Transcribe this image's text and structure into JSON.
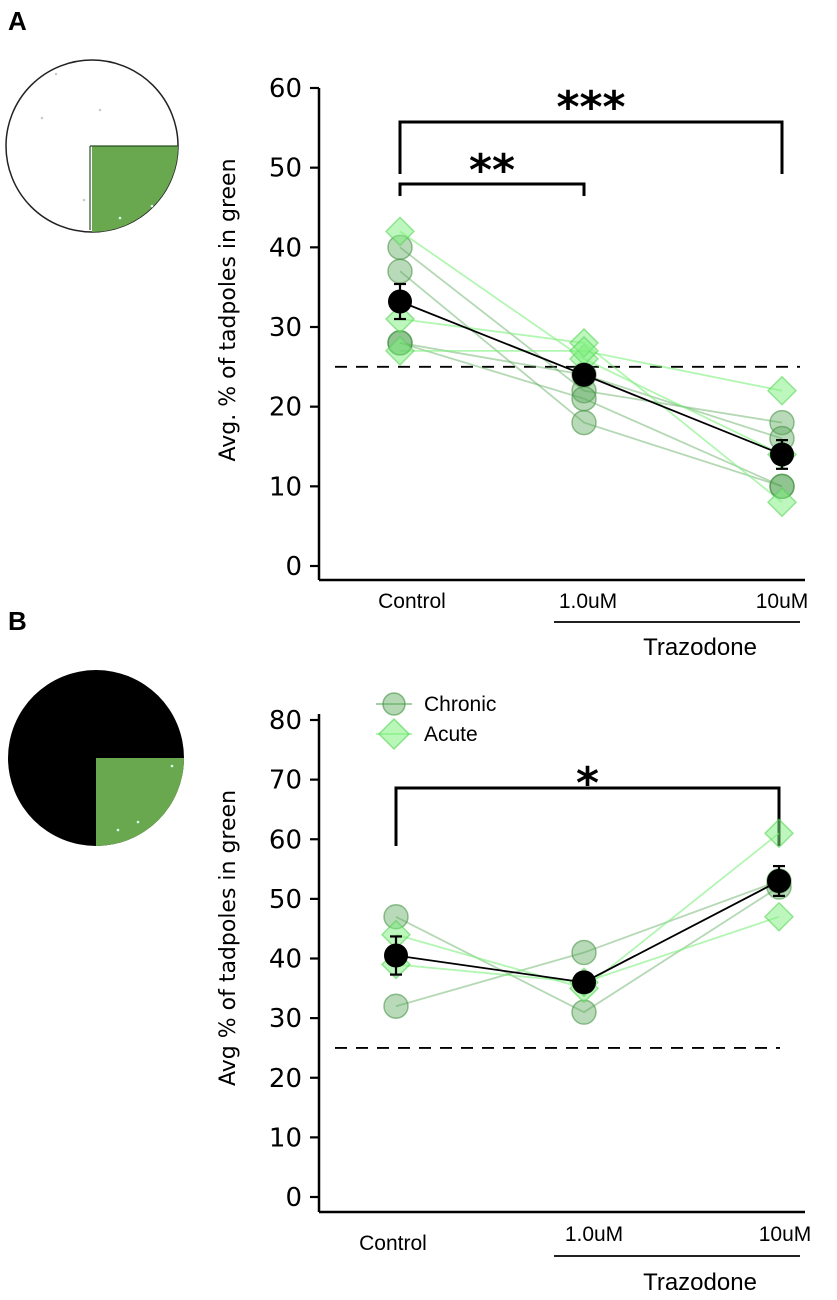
{
  "colors": {
    "chronic_fill": "#58a858",
    "chronic_stroke": "#3f8f3f",
    "acute_fill": "#7df07d",
    "acute_stroke": "#4fd44f",
    "mean": "#000000",
    "arena_green": "#6aa84f",
    "arena_dark": "#000000"
  },
  "legend": {
    "chronic": "Chronic",
    "acute": "Acute"
  },
  "chart_data": [
    {
      "panel": "A",
      "type": "line",
      "arena": "light",
      "categories": [
        "Control",
        "1.0uM",
        "10uM"
      ],
      "group_label": "Trazodone",
      "ylabel": "Avg. % of tadpoles in green",
      "ylim": [
        0,
        60
      ],
      "yticks": [
        0,
        10,
        20,
        30,
        40,
        50,
        60
      ],
      "chance_line": 25,
      "chronic": [
        [
          40,
          22,
          18
        ],
        [
          37,
          18,
          10
        ],
        [
          28,
          21,
          10
        ],
        [
          28,
          24,
          16
        ]
      ],
      "acute": [
        [
          42,
          26,
          14
        ],
        [
          31,
          28,
          8
        ],
        [
          27,
          27,
          22
        ]
      ],
      "mean": [
        33.2,
        24.0,
        14.0
      ],
      "sem": [
        2.2,
        1.2,
        1.8
      ],
      "significance": [
        {
          "from": "Control",
          "to": "1.0uM",
          "label": "**"
        },
        {
          "from": "Control",
          "to": "10uM",
          "label": "***"
        }
      ]
    },
    {
      "panel": "B",
      "type": "line",
      "arena": "dark",
      "categories": [
        "Control",
        "1.0uM",
        "10uM"
      ],
      "group_label": "Trazodone",
      "ylabel": "Avg % of tadpoles in green",
      "ylim": [
        0,
        80
      ],
      "yticks": [
        0,
        10,
        20,
        30,
        40,
        50,
        60,
        70,
        80
      ],
      "chance_line": 25,
      "chronic": [
        [
          47,
          31,
          52
        ],
        [
          32,
          41,
          53
        ]
      ],
      "acute": [
        [
          44,
          35,
          61
        ],
        [
          39,
          36,
          47
        ]
      ],
      "mean": [
        40.5,
        36.0,
        53.0
      ],
      "sem": [
        3.2,
        1.5,
        2.5
      ],
      "significance": [
        {
          "from": "Control",
          "to": "10uM",
          "label": "*"
        }
      ]
    }
  ]
}
